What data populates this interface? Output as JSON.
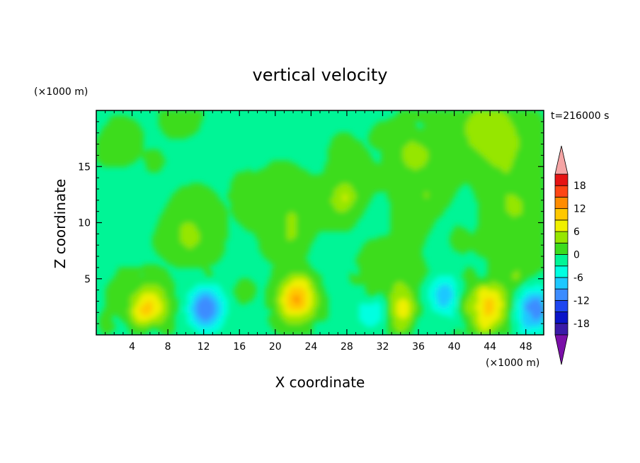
{
  "chart_data": {
    "type": "heatmap",
    "title": "vertical velocity",
    "xlabel": "X coordinate",
    "ylabel": "Z coordinate",
    "x_unit": "(×1000 m)",
    "y_unit": "(×1000 m)",
    "time_label": "t=216000 s",
    "xlim": [
      0,
      50
    ],
    "ylim": [
      0,
      20
    ],
    "xticks": [
      "4",
      "8",
      "12",
      "16",
      "20",
      "24",
      "28",
      "32",
      "36",
      "40",
      "44",
      "48"
    ],
    "yticks": [
      "5",
      "10",
      "15"
    ],
    "colorbar": {
      "levels": [
        -21,
        -18,
        -15,
        -12,
        -9,
        -6,
        -3,
        0,
        3,
        6,
        9,
        12,
        15,
        18,
        21
      ],
      "tick_labels": [
        "18",
        "12",
        "6",
        "0",
        "-6",
        "-12",
        "-18"
      ],
      "colors": [
        "#7a0fa8",
        "#3a1aa8",
        "#0a14c8",
        "#1e46f0",
        "#3c8cff",
        "#1ec8ff",
        "#00ffe1",
        "#00f596",
        "#3cdc1e",
        "#96e600",
        "#f0f000",
        "#ffc800",
        "#ff8c00",
        "#ff4614",
        "#e61414",
        "#f5a5a5"
      ],
      "extend": "both"
    },
    "features": [
      {
        "x": 6,
        "z": 2.5,
        "w": 9
      },
      {
        "x": 12.3,
        "z": 2.4,
        "w": -12
      },
      {
        "x": 22.5,
        "z": 3.2,
        "w": 13
      },
      {
        "x": 34,
        "z": 2.5,
        "w": 7
      },
      {
        "x": 44,
        "z": 2.6,
        "w": 10
      },
      {
        "x": 49,
        "z": 2.3,
        "w": -12
      },
      {
        "x": 39,
        "z": 3.5,
        "w": -8
      },
      {
        "x": 31,
        "z": 2.5,
        "w": -7
      }
    ]
  }
}
